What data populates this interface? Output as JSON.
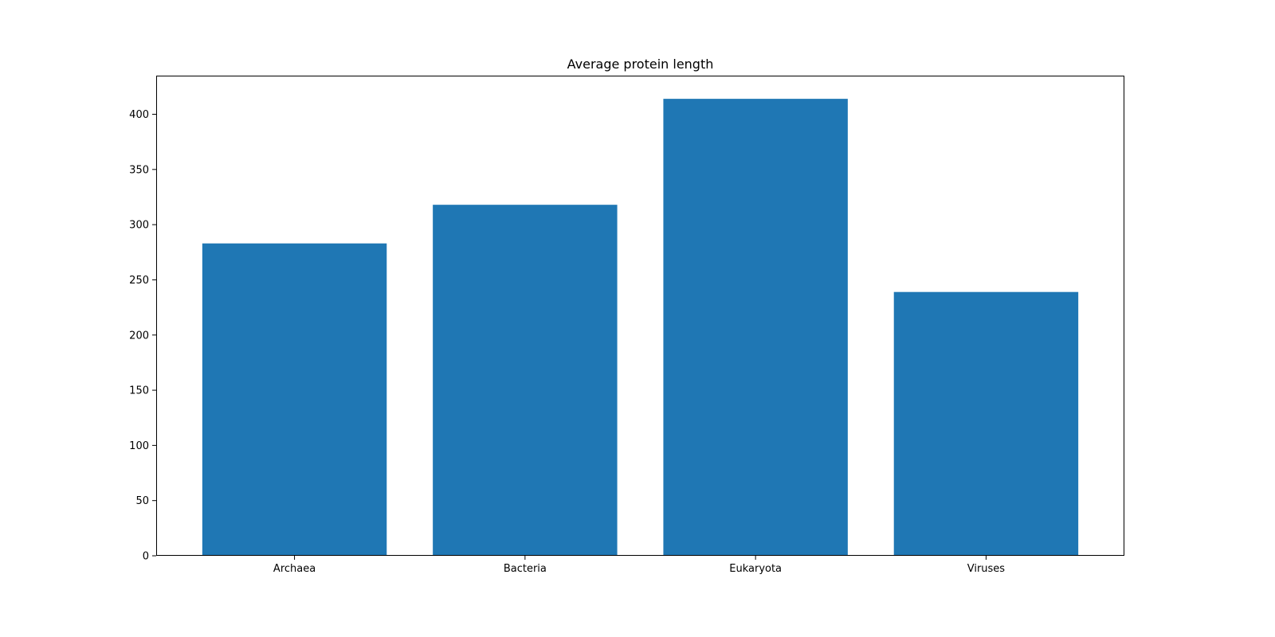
{
  "chart_data": {
    "type": "bar",
    "title": "Average protein length",
    "xlabel": "",
    "ylabel": "",
    "categories": [
      "Archaea",
      "Bacteria",
      "Eukaryota",
      "Viruses"
    ],
    "values": [
      283,
      318,
      414,
      239
    ],
    "ylim": [
      0,
      435
    ],
    "yticks": [
      0,
      50,
      100,
      150,
      200,
      250,
      300,
      350,
      400
    ],
    "ytick_labels": [
      "0",
      "50",
      "100",
      "150",
      "200",
      "250",
      "300",
      "350",
      "400"
    ],
    "bar_color": "#1f77b4",
    "grid": false,
    "legend": "none"
  }
}
